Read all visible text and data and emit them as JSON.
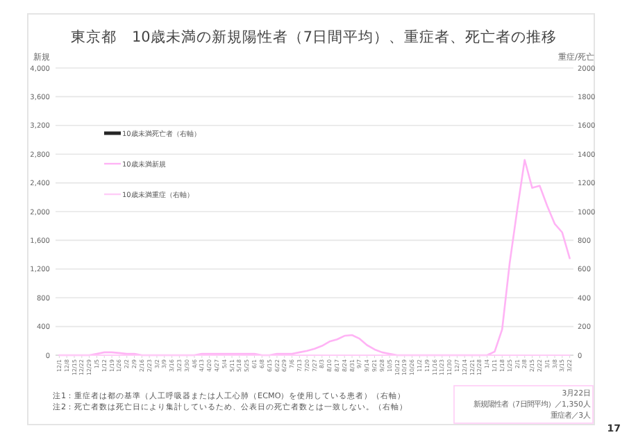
{
  "chart_data": {
    "type": "line",
    "title": "東京都　10歳未満の新規陽性者（7日間平均）、重症者、死亡者の推移",
    "ylabel": "新規",
    "y2label": "重症/死亡",
    "categories": [
      "12/1",
      "12/8",
      "12/15",
      "12/22",
      "12/29",
      "1/5",
      "1/12",
      "1/19",
      "1/26",
      "2/2",
      "2/9",
      "2/16",
      "2/23",
      "3/2",
      "3/9",
      "3/16",
      "3/23",
      "3/30",
      "4/6",
      "4/13",
      "4/20",
      "4/27",
      "5/4",
      "5/11",
      "5/18",
      "5/25",
      "6/1",
      "6/8",
      "6/15",
      "6/22",
      "6/29",
      "7/6",
      "7/13",
      "7/20",
      "7/27",
      "8/3",
      "8/10",
      "8/17",
      "8/24",
      "8/31",
      "9/7",
      "9/14",
      "9/21",
      "9/28",
      "10/5",
      "10/12",
      "10/19",
      "10/26",
      "11/2",
      "11/9",
      "11/16",
      "11/23",
      "11/30",
      "12/7",
      "12/14",
      "12/21",
      "12/28",
      "1/4",
      "1/11",
      "1/18",
      "1/25",
      "2/1",
      "2/8",
      "2/15",
      "2/22",
      "3/1",
      "3/8",
      "3/15",
      "3/22"
    ],
    "series": [
      {
        "name": "10歳未満死亡者（右軸）",
        "color": "#262626",
        "values": [
          null,
          null,
          null,
          null,
          null,
          null,
          null,
          null,
          null,
          null,
          null,
          null,
          null,
          null,
          null,
          null,
          null,
          null,
          null,
          null,
          null,
          null,
          null,
          null,
          null,
          null,
          null,
          null,
          null,
          null,
          null,
          null,
          null,
          null,
          null,
          null,
          null,
          null,
          null,
          null,
          null,
          null,
          null,
          null,
          null,
          null,
          null,
          null,
          null,
          null,
          null,
          null,
          null,
          null,
          null,
          null,
          null,
          null,
          null,
          null,
          null,
          null,
          null,
          null,
          null,
          null,
          null,
          null,
          null
        ]
      },
      {
        "name": "10歳未満新規",
        "color": "#ffb3f5",
        "values": [
          0,
          0,
          0,
          0,
          0,
          20,
          40,
          40,
          30,
          20,
          20,
          0,
          0,
          0,
          0,
          0,
          0,
          0,
          0,
          20,
          20,
          20,
          20,
          20,
          20,
          20,
          20,
          0,
          0,
          20,
          20,
          20,
          40,
          60,
          90,
          130,
          190,
          220,
          270,
          280,
          230,
          140,
          80,
          40,
          20,
          0,
          0,
          0,
          0,
          0,
          0,
          0,
          0,
          0,
          0,
          0,
          0,
          0,
          50,
          360,
          1280,
          2020,
          2720,
          2330,
          2360,
          2080,
          1830,
          1710,
          1350
        ]
      },
      {
        "name": "10歳未満重症（右軸）",
        "color": "#ffccf7",
        "values": [
          0,
          0,
          0,
          0,
          0,
          0,
          0,
          0,
          0,
          0,
          0,
          0,
          0,
          0,
          0,
          0,
          0,
          0,
          0,
          0,
          0,
          0,
          0,
          0,
          0,
          0,
          0,
          0,
          0,
          0,
          0,
          0,
          0,
          0,
          0,
          0,
          0,
          0,
          0,
          0,
          0,
          0,
          0,
          0,
          0,
          0,
          0,
          0,
          0,
          0,
          0,
          0,
          0,
          0,
          0,
          0,
          0,
          0,
          0,
          0,
          0,
          0,
          0,
          0,
          0,
          0,
          0,
          0,
          0
        ]
      }
    ],
    "ylim": [
      0,
      4000
    ],
    "yticks": [
      0,
      {
        "value": 400,
        "label": "400"
      },
      {
        "value": 800,
        "label": "800"
      },
      {
        "value": 1200,
        "label": "1,200"
      },
      {
        "value": 1600,
        "label": "1,600"
      },
      {
        "value": 2000,
        "label": "2,000"
      },
      {
        "value": 2400,
        "label": "2,400"
      },
      {
        "value": 2800,
        "label": "2,800"
      },
      {
        "value": 3200,
        "label": "3,200"
      },
      {
        "value": 3600,
        "label": "3,600"
      },
      {
        "value": 4000,
        "label": "4,000"
      }
    ],
    "y2lim": [
      0,
      2000
    ],
    "y2ticks": [
      0,
      200,
      400,
      600,
      800,
      1000,
      1200,
      1400,
      1600,
      1800,
      2000
    ],
    "grid": "y",
    "legend": "top left",
    "marker": "none",
    "annotations": [
      "注1：重症者は都の基準（人工呼吸器または人工心肺（ECMO）を使用している患者）（右軸）",
      "注2：死亡者数は死亡日により集計しているため、公表日の死亡者数とは一致しない。（右軸）",
      "3月22日",
      "新規陽性者（7日間平均）／1,350人",
      "重症者／3人",
      "17"
    ]
  }
}
